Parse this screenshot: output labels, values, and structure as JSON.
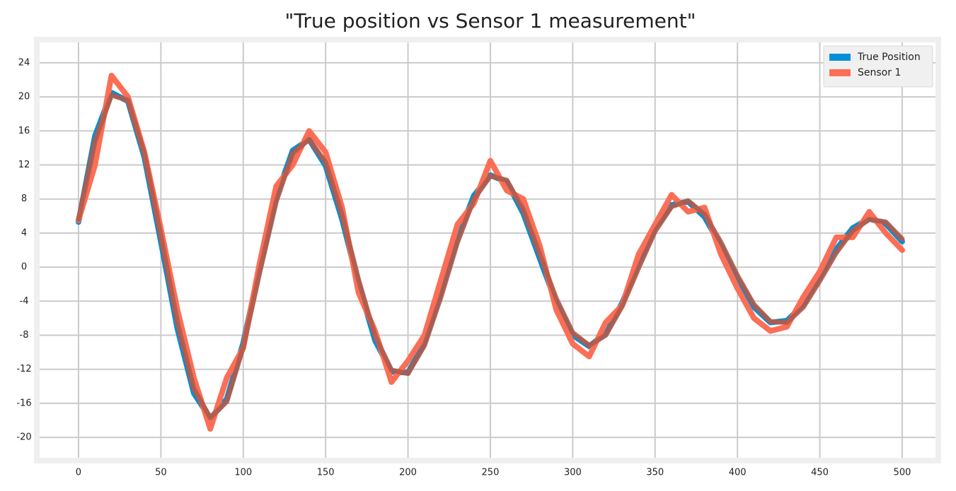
{
  "chart_data": {
    "type": "line",
    "title": "\"True position vs Sensor 1 measurement\"",
    "x": [
      0,
      10,
      20,
      30,
      40,
      50,
      60,
      70,
      80,
      90,
      100,
      110,
      120,
      130,
      140,
      150,
      160,
      170,
      180,
      190,
      200,
      210,
      220,
      230,
      240,
      250,
      260,
      270,
      280,
      290,
      300,
      310,
      320,
      330,
      340,
      350,
      360,
      370,
      380,
      390,
      400,
      410,
      420,
      430,
      440,
      450,
      460,
      470,
      480,
      490,
      500
    ],
    "series": [
      {
        "name": "True Position",
        "color": "#008fd5",
        "values": [
          5.3,
          15.4,
          20.5,
          19.5,
          12.9,
          3.0,
          -7.2,
          -14.8,
          -17.8,
          -15.5,
          -8.9,
          -0.1,
          8.2,
          13.7,
          15.0,
          11.9,
          5.6,
          -2.0,
          -8.6,
          -12.3,
          -12.4,
          -8.9,
          -3.0,
          3.4,
          8.4,
          10.8,
          10.0,
          6.3,
          1.0,
          -4.2,
          -8.0,
          -9.3,
          -7.8,
          -4.2,
          0.4,
          4.6,
          7.3,
          7.7,
          5.9,
          2.5,
          -1.4,
          -4.7,
          -6.5,
          -6.3,
          -4.4,
          -1.2,
          2.1,
          4.6,
          5.7,
          5.1,
          3.0
        ]
      },
      {
        "name": "Sensor 1",
        "color": "#fc6e55",
        "values": [
          5.5,
          12.0,
          22.5,
          20.0,
          13.5,
          4.5,
          -5.0,
          -13.0,
          -19.0,
          -13.0,
          -9.5,
          0.5,
          9.5,
          12.0,
          16.0,
          13.5,
          7.0,
          -3.0,
          -7.5,
          -13.5,
          -11.0,
          -8.0,
          -1.5,
          5.0,
          7.5,
          12.5,
          9.0,
          8.0,
          2.5,
          -5.0,
          -9.0,
          -10.5,
          -6.5,
          -4.5,
          1.5,
          5.0,
          8.5,
          6.5,
          7.0,
          1.5,
          -2.5,
          -6.0,
          -7.5,
          -7.0,
          -3.5,
          -0.5,
          3.5,
          3.5,
          6.5,
          4.0,
          2.0
        ]
      },
      {
        "color": "#b35a4a",
        "values": [
          5.6,
          14.8,
          20.2,
          19.6,
          13.3,
          3.6,
          -6.5,
          -14.3,
          -17.7,
          -15.8,
          -9.4,
          -0.6,
          7.7,
          13.4,
          15.0,
          12.3,
          6.1,
          -1.5,
          -8.1,
          -12.1,
          -12.5,
          -9.2,
          -3.5,
          2.9,
          8.0,
          10.7,
          10.2,
          6.7,
          1.5,
          -3.7,
          -7.7,
          -9.2,
          -8.0,
          -4.6,
          -0.1,
          4.2,
          7.1,
          7.8,
          6.2,
          2.9,
          -1.0,
          -4.4,
          -6.4,
          -6.5,
          -4.7,
          -1.6,
          1.7,
          4.3,
          5.6,
          5.3,
          3.3
        ]
      }
    ],
    "xlim": [
      -23.6,
      520.2
    ],
    "ylim": [
      -22.4,
      26.4
    ],
    "xticks": [
      0,
      50,
      100,
      150,
      200,
      250,
      300,
      350,
      400,
      450,
      500
    ],
    "yticks": [
      -20,
      -16,
      -12,
      -8,
      -4,
      0,
      4,
      8,
      12,
      16,
      20,
      24
    ],
    "grid": true,
    "legend": "upper right"
  }
}
